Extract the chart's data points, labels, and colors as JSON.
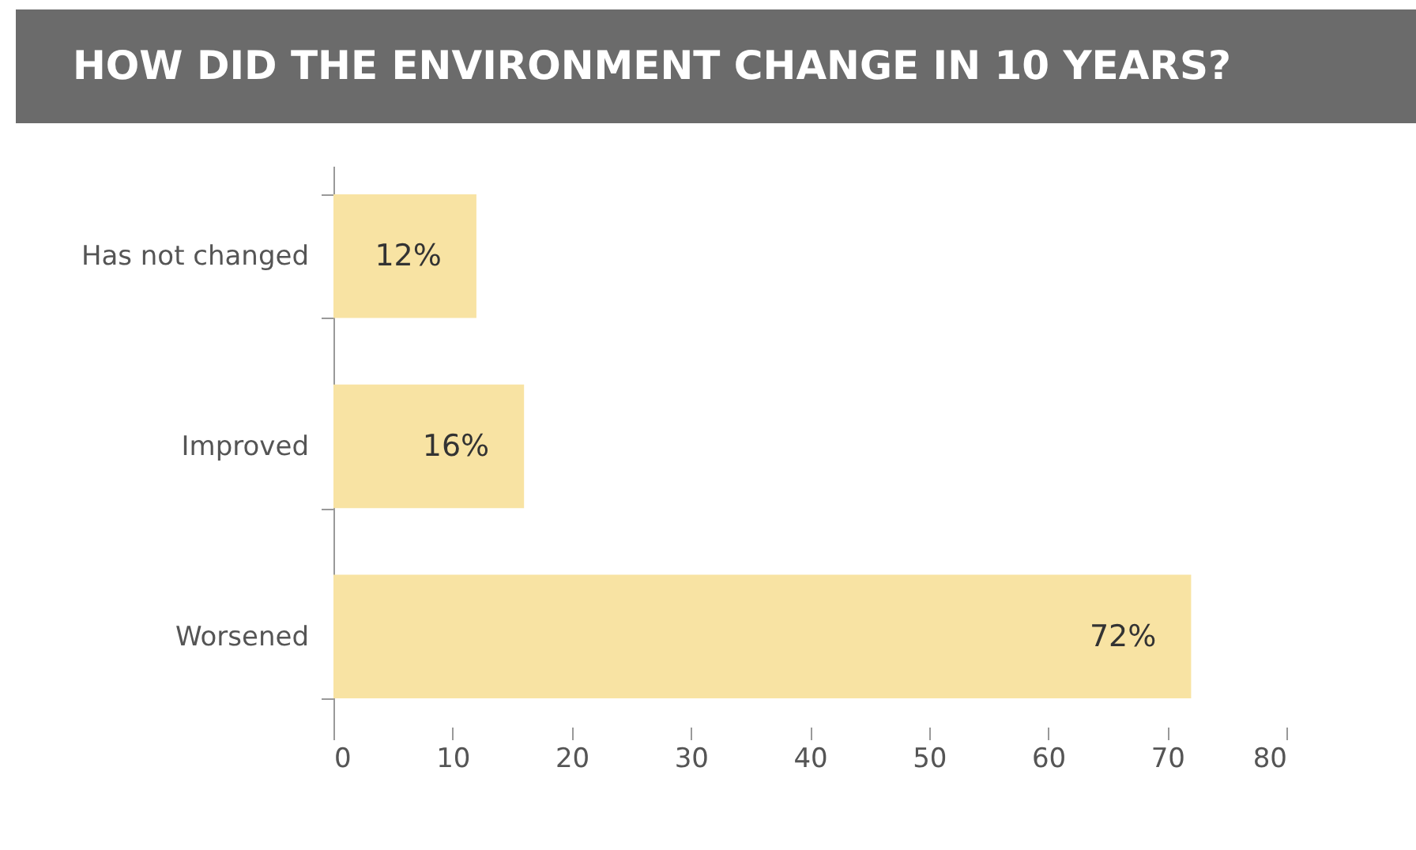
{
  "chart_data": {
    "type": "bar",
    "orientation": "horizontal",
    "title": "HOW DID THE ENVIRONMENT CHANGE IN 10 YEARS?",
    "categories": [
      "Has not changed",
      "Improved",
      "Worsened"
    ],
    "values": [
      12,
      16,
      72
    ],
    "value_labels": [
      "12%",
      "16%",
      "72%"
    ],
    "color": "#f8e3a3",
    "xlim": [
      0,
      80
    ],
    "xticks": [
      0,
      10,
      20,
      30,
      40,
      50,
      60,
      70,
      80
    ],
    "grid": false
  }
}
